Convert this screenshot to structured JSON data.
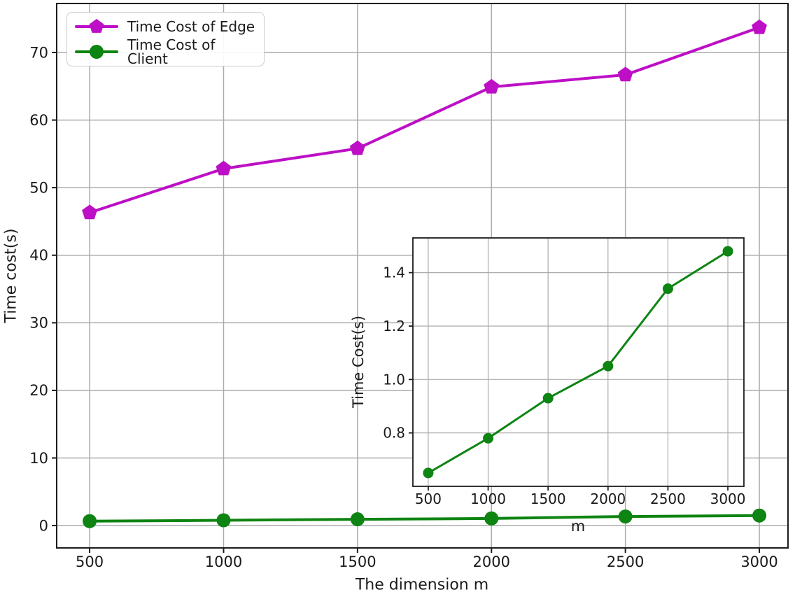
{
  "colors": {
    "edge": "#bd0fc6",
    "client": "#0e8412",
    "grid": "#ababab",
    "spine": "#1c1c1c",
    "text": "#1a1a1a",
    "legend_border": "#cccccc",
    "background": "#ffffff"
  },
  "legend": {
    "position": "upper-left",
    "items": [
      {
        "label": "Time Cost of Edge"
      },
      {
        "label": "Time Cost of Client"
      }
    ]
  },
  "chart_data": [
    {
      "id": "main",
      "type": "line",
      "title": "",
      "x": [
        500,
        1000,
        1500,
        2000,
        2500,
        3000
      ],
      "series": [
        {
          "name": "Time Cost of Edge",
          "marker": "pentagon",
          "color": "#bd0fc6",
          "values": [
            46.3,
            52.8,
            55.8,
            64.9,
            66.7,
            73.7
          ]
        },
        {
          "name": "Time Cost of Client",
          "marker": "circle",
          "color": "#0e8412",
          "values": [
            0.65,
            0.78,
            0.93,
            1.05,
            1.34,
            1.48
          ]
        }
      ],
      "xlabel": "The dimension m",
      "ylabel": "Time cost(s)",
      "xticks": [
        500,
        1000,
        1500,
        2000,
        2500,
        3000
      ],
      "xtick_labels": [
        "500",
        "1000",
        "1500",
        "2000",
        "2500",
        "3000"
      ],
      "yticks": [
        0,
        10,
        20,
        30,
        40,
        50,
        60,
        70
      ],
      "ytick_labels": [
        "0",
        "10",
        "20",
        "30",
        "40",
        "50",
        "60",
        "70"
      ],
      "xlim": [
        377,
        3107
      ],
      "ylim": [
        -3.31,
        77.25
      ],
      "grid": true,
      "legend_position": "upper-left"
    },
    {
      "id": "inset",
      "type": "line",
      "title": "",
      "x": [
        500,
        1000,
        1500,
        2000,
        2500,
        3000
      ],
      "series": [
        {
          "name": "Time Cost of Client",
          "marker": "circle",
          "color": "#0e8412",
          "values": [
            0.65,
            0.78,
            0.93,
            1.05,
            1.34,
            1.48
          ]
        }
      ],
      "xlabel": "m",
      "ylabel": "Time Cost(s)",
      "xticks": [
        500,
        1000,
        1500,
        2000,
        2500,
        3000
      ],
      "xtick_labels": [
        "500",
        "1000",
        "1500",
        "2000",
        "2500",
        "3000"
      ],
      "yticks": [
        0.8,
        1.0,
        1.2,
        1.4
      ],
      "ytick_labels": [
        "0.8",
        "1.0",
        "1.2",
        "1.4"
      ],
      "xlim": [
        372,
        3134
      ],
      "ylim": [
        0.6,
        1.53
      ],
      "grid": true,
      "legend_position": "none"
    }
  ]
}
